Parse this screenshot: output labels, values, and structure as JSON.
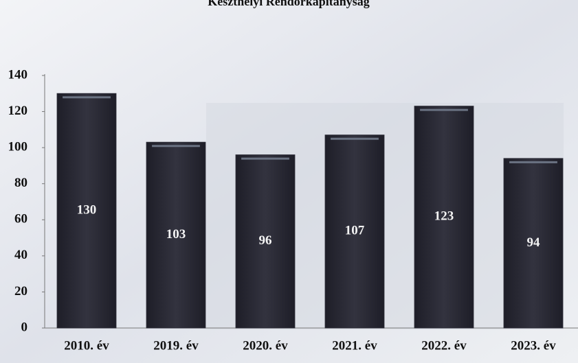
{
  "chart_data": {
    "type": "bar",
    "title": "Keszthelyi Rendőrkapitányság",
    "categories": [
      "2010. év",
      "2019. év",
      "2020. év",
      "2021. év",
      "2022. év",
      "2023. év"
    ],
    "values": [
      130,
      103,
      96,
      107,
      123,
      94
    ],
    "color": "#2b2b36",
    "ylim": [
      0,
      140
    ],
    "yticks": [
      0,
      20,
      40,
      60,
      80,
      100,
      120,
      140
    ],
    "grid": false
  }
}
